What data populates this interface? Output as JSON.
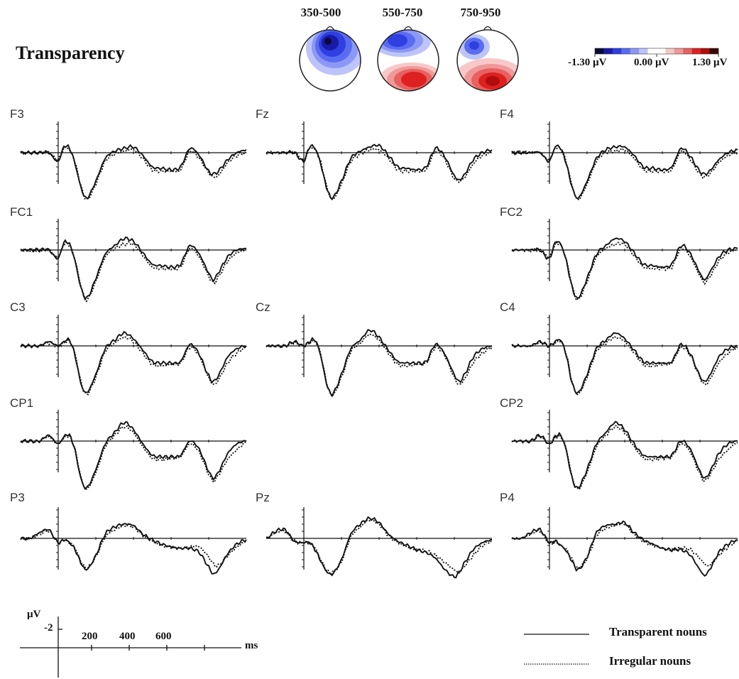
{
  "title": "Transparency",
  "topomaps": [
    {
      "label": "350-500"
    },
    {
      "label": "550-750"
    },
    {
      "label": "750-950"
    }
  ],
  "colorbar": {
    "min_label": "-1.30 µV",
    "mid_label": "0.00 µV",
    "max_label": "1.30 µV",
    "colors": [
      "#0a0a3a",
      "#1a1aa8",
      "#2f3fe0",
      "#5a6cf0",
      "#8c98f5",
      "#bcc4fa",
      "#ffffff",
      "#ffffff",
      "#f8c8c8",
      "#f09898",
      "#e86060",
      "#dd2020",
      "#b00d0d",
      "#3a0505"
    ]
  },
  "scale": {
    "unit_label": "µV",
    "amp_label": "-2",
    "tick_labels": [
      "200",
      "400",
      "600"
    ],
    "time_unit": "ms"
  },
  "legend": [
    {
      "label": "Transparent nouns",
      "style": "solid"
    },
    {
      "label": "Irregular nouns",
      "style": "dotted"
    }
  ],
  "chart_data": {
    "type": "line",
    "x_unit": "ms",
    "y_unit": "µV",
    "y_negative_up": true,
    "x_range": [
      -200,
      1000
    ],
    "x": [
      -200,
      -150,
      -100,
      -50,
      0,
      30,
      60,
      90,
      120,
      150,
      200,
      250,
      300,
      350,
      400,
      450,
      500,
      550,
      600,
      650,
      700,
      750,
      800,
      825,
      850,
      900,
      950,
      1000
    ],
    "channels": [
      {
        "name": "F3",
        "group": "frontal",
        "transparent": [
          0,
          0,
          0,
          0,
          0.6,
          -0.4,
          -0.3,
          0.8,
          2.4,
          3.2,
          2.0,
          0.4,
          -0.1,
          -0.3,
          -0.4,
          0.2,
          1.0,
          1.1,
          1.2,
          1.0,
          -0.3,
          0.2,
          1.3,
          1.5,
          1.3,
          0.5,
          0,
          -0.2
        ],
        "irregular": [
          0,
          0,
          0,
          0,
          0.5,
          -0.3,
          -0.2,
          0.7,
          2.3,
          3.3,
          2.2,
          0.6,
          0.1,
          -0.1,
          -0.2,
          0.4,
          1.2,
          1.3,
          1.3,
          1.2,
          -0.1,
          0.4,
          1.4,
          1.7,
          1.6,
          0.7,
          0.2,
          0
        ]
      },
      {
        "name": "Fz",
        "group": "frontal",
        "transparent": [
          0,
          0,
          0,
          0,
          0.6,
          -0.4,
          -0.3,
          0.8,
          2.4,
          3.2,
          2.0,
          0.4,
          -0.1,
          -0.4,
          -0.5,
          0.2,
          1.0,
          1.1,
          1.2,
          1.0,
          -0.3,
          0.3,
          1.6,
          1.9,
          1.6,
          0.5,
          0,
          -0.2
        ],
        "irregular": [
          0,
          0,
          0,
          0,
          0.5,
          -0.3,
          -0.2,
          0.7,
          2.3,
          3.3,
          2.2,
          0.6,
          0.1,
          -0.2,
          -0.2,
          0.4,
          1.2,
          1.3,
          1.3,
          1.2,
          -0.1,
          0.5,
          1.8,
          2.0,
          1.8,
          0.8,
          0.2,
          0
        ]
      },
      {
        "name": "F4",
        "group": "frontal",
        "transparent": [
          0,
          0,
          0,
          0,
          0.6,
          -0.4,
          -0.3,
          0.8,
          2.4,
          3.2,
          2.0,
          0.4,
          -0.2,
          -0.4,
          -0.4,
          0.2,
          1.0,
          1.1,
          1.2,
          1.0,
          -0.3,
          0.3,
          1.3,
          1.5,
          1.3,
          0.5,
          0,
          -0.2
        ],
        "irregular": [
          0,
          0,
          0,
          0,
          0.5,
          -0.3,
          -0.2,
          0.7,
          2.3,
          3.3,
          2.2,
          0.6,
          0,
          -0.1,
          -0.2,
          0.4,
          1.2,
          1.3,
          1.3,
          1.2,
          -0.1,
          0.5,
          1.5,
          1.7,
          1.5,
          0.7,
          0.2,
          0
        ]
      },
      {
        "name": "FC1",
        "group": "frontocentral",
        "transparent": [
          0,
          0,
          0,
          0,
          0.6,
          -0.5,
          -0.4,
          0.8,
          2.6,
          3.4,
          2.0,
          0.3,
          -0.3,
          -0.8,
          -0.6,
          0.2,
          1.0,
          1.1,
          1.2,
          1.0,
          -0.3,
          0.3,
          1.6,
          2.1,
          1.6,
          0.5,
          0,
          -0.1
        ],
        "irregular": [
          0,
          0,
          0,
          0,
          0.5,
          -0.4,
          -0.3,
          0.7,
          2.5,
          3.5,
          2.2,
          0.5,
          -0.1,
          -0.4,
          -0.4,
          0.4,
          1.2,
          1.3,
          1.3,
          1.2,
          -0.1,
          0.5,
          1.8,
          2.3,
          1.9,
          0.8,
          0.2,
          0
        ]
      },
      {
        "name": "FC2",
        "group": "frontocentral",
        "transparent": [
          0,
          0,
          0,
          0,
          0.6,
          -0.5,
          -0.4,
          0.8,
          2.6,
          3.4,
          2.0,
          0.3,
          -0.3,
          -0.8,
          -0.6,
          0.2,
          1.0,
          1.1,
          1.2,
          1.0,
          -0.3,
          0.3,
          1.6,
          2.1,
          1.6,
          0.5,
          0,
          -0.1
        ],
        "irregular": [
          0,
          0,
          0,
          0,
          0.5,
          -0.4,
          -0.3,
          0.7,
          2.5,
          3.5,
          2.2,
          0.5,
          -0.1,
          -0.4,
          -0.4,
          0.4,
          1.2,
          1.3,
          1.3,
          1.2,
          -0.1,
          0.5,
          1.8,
          2.3,
          1.9,
          0.8,
          0.2,
          0
        ]
      },
      {
        "name": "C3",
        "group": "central",
        "transparent": [
          0,
          0,
          0,
          -0.3,
          0,
          -0.3,
          -0.4,
          0.7,
          2.6,
          3.3,
          2.0,
          0.2,
          -0.4,
          -0.9,
          -0.5,
          0.3,
          1.1,
          1.2,
          1.2,
          1.1,
          -0.1,
          0.6,
          2.1,
          2.5,
          2.1,
          0.8,
          0.2,
          0
        ],
        "irregular": [
          0,
          0,
          0,
          -0.2,
          0,
          -0.2,
          -0.3,
          0.6,
          2.5,
          3.4,
          2.2,
          0.4,
          -0.2,
          -0.6,
          -0.3,
          0.5,
          1.3,
          1.4,
          1.3,
          1.2,
          0.1,
          0.7,
          2.2,
          2.7,
          2.4,
          1.2,
          0.5,
          0.1
        ]
      },
      {
        "name": "Cz",
        "group": "central",
        "transparent": [
          0,
          0,
          0,
          -0.3,
          0,
          -0.3,
          -0.4,
          0.7,
          2.6,
          3.4,
          2.0,
          0.2,
          -0.4,
          -1.1,
          -0.6,
          0.3,
          1.1,
          1.2,
          1.2,
          1.1,
          -0.1,
          0.6,
          2.0,
          2.5,
          2.1,
          0.8,
          0.2,
          0
        ],
        "irregular": [
          0,
          0,
          0,
          -0.2,
          0,
          -0.2,
          -0.3,
          0.6,
          2.5,
          3.5,
          2.2,
          0.4,
          -0.2,
          -0.8,
          -0.4,
          0.5,
          1.3,
          1.4,
          1.3,
          1.2,
          0.1,
          0.7,
          2.2,
          2.7,
          2.4,
          1.2,
          0.5,
          0.1
        ]
      },
      {
        "name": "C4",
        "group": "central",
        "transparent": [
          0,
          0,
          0,
          -0.3,
          0,
          -0.3,
          -0.4,
          0.7,
          2.6,
          3.3,
          2.0,
          0.2,
          -0.4,
          -0.9,
          -0.5,
          0.3,
          1.1,
          1.2,
          1.2,
          1.1,
          -0.1,
          0.6,
          2.1,
          2.5,
          2.1,
          0.8,
          0.2,
          0
        ],
        "irregular": [
          0,
          0,
          0,
          -0.2,
          0,
          -0.2,
          -0.3,
          0.6,
          2.5,
          3.4,
          2.2,
          0.4,
          -0.2,
          -0.6,
          -0.3,
          0.5,
          1.3,
          1.4,
          1.3,
          1.2,
          0.1,
          0.7,
          2.2,
          2.7,
          2.4,
          1.2,
          0.5,
          0.1
        ]
      },
      {
        "name": "CP1",
        "group": "centroparietal",
        "transparent": [
          0,
          0,
          0,
          -0.4,
          0.2,
          -0.3,
          -0.4,
          0.7,
          2.6,
          3.3,
          2.0,
          0.2,
          -0.6,
          -1.3,
          -0.8,
          0.2,
          1.0,
          1.1,
          1.1,
          1.0,
          0,
          0.6,
          2.1,
          2.6,
          2.2,
          0.9,
          0.2,
          0
        ],
        "irregular": [
          0,
          0,
          0,
          -0.3,
          0.2,
          -0.2,
          -0.3,
          0.6,
          2.5,
          3.4,
          2.2,
          0.4,
          -0.4,
          -1.0,
          -0.6,
          0.4,
          1.2,
          1.3,
          1.2,
          1.1,
          0.2,
          0.8,
          2.3,
          2.8,
          2.4,
          1.3,
          0.6,
          0.1
        ]
      },
      {
        "name": "CP2",
        "group": "centroparietal",
        "transparent": [
          0,
          0,
          0,
          -0.4,
          0.2,
          -0.3,
          -0.4,
          0.7,
          2.6,
          3.3,
          2.0,
          0.2,
          -0.6,
          -1.3,
          -0.8,
          0.2,
          1.0,
          1.1,
          1.1,
          1.0,
          0,
          0.6,
          2.1,
          2.6,
          2.2,
          0.9,
          0.2,
          0
        ],
        "irregular": [
          0,
          0,
          0,
          -0.3,
          0.2,
          -0.2,
          -0.3,
          0.6,
          2.5,
          3.4,
          2.2,
          0.4,
          -0.4,
          -1.0,
          -0.6,
          0.4,
          1.2,
          1.3,
          1.2,
          1.1,
          0.2,
          0.8,
          2.3,
          2.8,
          2.4,
          1.3,
          0.6,
          0.1
        ]
      },
      {
        "name": "P3",
        "group": "parietal",
        "transparent": [
          0,
          0,
          -0.4,
          -0.6,
          0.3,
          0.1,
          0.3,
          0.8,
          1.7,
          2.2,
          1.2,
          -0.3,
          -0.8,
          -1.0,
          -0.9,
          -0.3,
          0.1,
          0.4,
          0.6,
          0.7,
          0.7,
          1.0,
          2.0,
          2.5,
          2.2,
          1.1,
          0.4,
          0.1
        ],
        "irregular": [
          0,
          0,
          -0.3,
          -0.5,
          0.3,
          0.1,
          0.3,
          0.7,
          1.6,
          2.1,
          1.3,
          -0.1,
          -0.6,
          -0.9,
          -0.8,
          -0.2,
          0.2,
          0.5,
          0.6,
          0.7,
          0.6,
          0.6,
          1.3,
          1.8,
          1.9,
          1.2,
          0.6,
          0.2
        ]
      },
      {
        "name": "Pz",
        "group": "parietal",
        "transparent": [
          0,
          -0.5,
          -0.6,
          0.2,
          0.3,
          0.3,
          0.8,
          1.6,
          2.3,
          2.5,
          1.5,
          -0.3,
          -1.0,
          -1.4,
          -1.1,
          -0.3,
          0.2,
          0.5,
          0.8,
          1.0,
          1.4,
          2.2,
          2.7,
          2.4,
          1.8,
          0.8,
          0.3,
          0.1
        ],
        "irregular": [
          0,
          -0.4,
          -0.5,
          0.2,
          0.3,
          0.3,
          0.7,
          1.5,
          2.2,
          2.4,
          1.6,
          -0.1,
          -0.8,
          -1.3,
          -1.0,
          -0.2,
          0.3,
          0.6,
          0.8,
          0.9,
          1.2,
          1.7,
          2.2,
          2.4,
          2.0,
          1.2,
          0.5,
          0.2
        ]
      },
      {
        "name": "P4",
        "group": "parietal",
        "transparent": [
          0,
          0,
          -0.4,
          -0.6,
          0.3,
          0.2,
          0.5,
          0.9,
          1.6,
          2.2,
          1.3,
          -0.4,
          -0.9,
          -1.0,
          -1.1,
          -0.4,
          0.1,
          0.4,
          0.7,
          0.8,
          0.8,
          1.2,
          2.2,
          2.6,
          2.2,
          1.0,
          0.4,
          0.1
        ],
        "irregular": [
          0,
          0,
          -0.3,
          -0.5,
          0.3,
          0.2,
          0.5,
          0.8,
          1.5,
          2.1,
          1.4,
          -0.2,
          -0.7,
          -0.9,
          -1.0,
          -0.3,
          0.2,
          0.5,
          0.7,
          0.8,
          0.7,
          0.8,
          1.4,
          1.8,
          1.9,
          1.2,
          0.6,
          0.2
        ]
      }
    ]
  }
}
